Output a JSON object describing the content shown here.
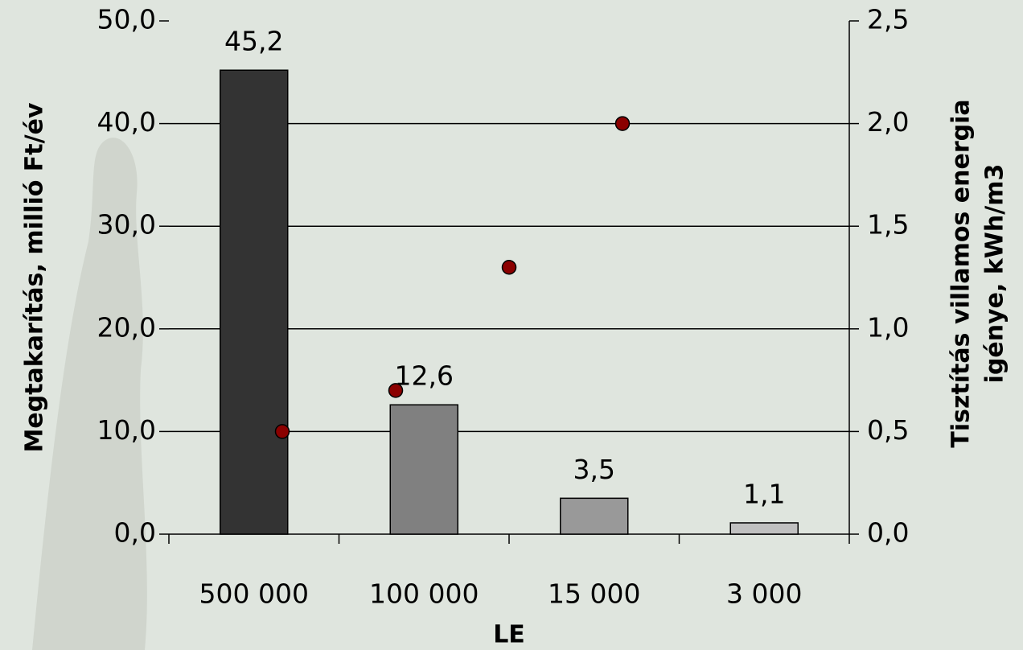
{
  "chart_data": {
    "type": "bar",
    "categories": [
      "500 000",
      "100 000",
      "15 000",
      "3 000"
    ],
    "values": [
      45.2,
      12.6,
      3.5,
      1.1
    ],
    "value_labels": [
      "45,2",
      "12,6",
      "3,5",
      "1,1"
    ],
    "colors": [
      "#333333",
      "#808080",
      "#999999",
      "#c0c0c0"
    ],
    "ylim": [
      0,
      50
    ],
    "yticks": [
      {
        "value": 0,
        "label": "0,0"
      },
      {
        "value": 10,
        "label": "10,0"
      },
      {
        "value": 20,
        "label": "20,0"
      },
      {
        "value": 30,
        "label": "30,0"
      },
      {
        "value": 40,
        "label": "40,0"
      },
      {
        "value": 50,
        "label": "50,0"
      }
    ],
    "y2lim": [
      0,
      2.5
    ],
    "y2ticks": [
      {
        "value": 0,
        "label": "0,0"
      },
      {
        "value": 0.5,
        "label": "0,5"
      },
      {
        "value": 1,
        "label": "1,0"
      },
      {
        "value": 1.5,
        "label": "1,5"
      },
      {
        "value": 2,
        "label": "2,0"
      },
      {
        "value": 2.5,
        "label": "2,5"
      }
    ],
    "ylabel": "Megtakarítás, millió Ft/év",
    "y2label": [
      "Tisztítás villamos energia",
      "igénye, kWh/m3"
    ],
    "xlabel": "LE",
    "grid": true,
    "x2lim": [
      0,
      6
    ],
    "series": [
      {
        "type": "scatter",
        "axis": "y2",
        "color": "#8b0000",
        "x": [
          1,
          2,
          3,
          4
        ],
        "values": [
          0.5,
          0.7,
          1.3,
          2.0
        ]
      }
    ]
  }
}
